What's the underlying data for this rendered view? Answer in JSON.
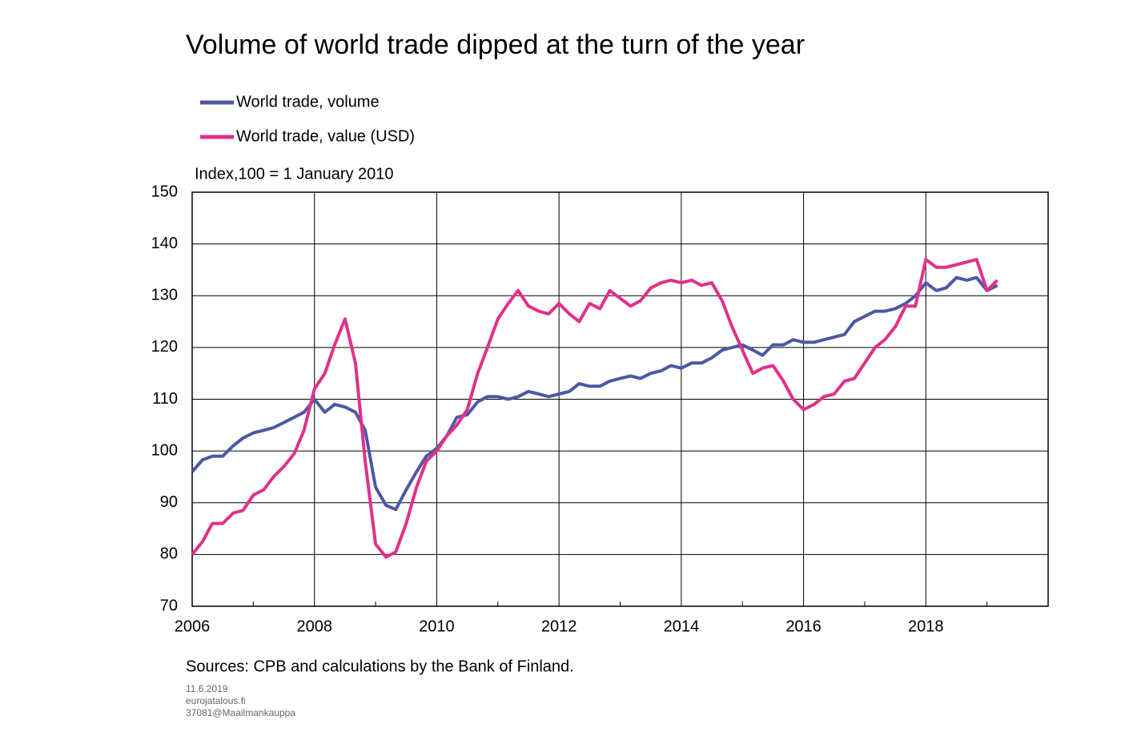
{
  "chart_data": {
    "type": "line",
    "title": "Volume of world trade dipped at the turn of the year",
    "y_label": "Index,100 = 1 January 2010",
    "source": "Sources: CPB and calculations by the Bank of Finland.",
    "footer": [
      "11.6.2019",
      "eurojatalous.fi",
      "37081@Maailmankauppa"
    ],
    "xlim": [
      2006,
      2020
    ],
    "xticks": [
      2006,
      2008,
      2010,
      2012,
      2014,
      2016,
      2018
    ],
    "xminorticks": [
      2007,
      2009,
      2011,
      2013,
      2015,
      2017,
      2019
    ],
    "ylim": [
      70,
      150
    ],
    "yticks": [
      70,
      80,
      90,
      100,
      110,
      120,
      130,
      140,
      150
    ],
    "grid": true,
    "x": [
      2006,
      2006.17,
      2006.33,
      2006.5,
      2006.67,
      2006.83,
      2007,
      2007.17,
      2007.33,
      2007.5,
      2007.67,
      2007.83,
      2008,
      2008.17,
      2008.33,
      2008.5,
      2008.67,
      2008.83,
      2009,
      2009.17,
      2009.33,
      2009.5,
      2009.67,
      2009.83,
      2010,
      2010.17,
      2010.33,
      2010.5,
      2010.67,
      2010.83,
      2011,
      2011.17,
      2011.33,
      2011.5,
      2011.67,
      2011.83,
      2012,
      2012.17,
      2012.33,
      2012.5,
      2012.67,
      2012.83,
      2013,
      2013.17,
      2013.33,
      2013.5,
      2013.67,
      2013.83,
      2014,
      2014.17,
      2014.33,
      2014.5,
      2014.67,
      2014.83,
      2015,
      2015.17,
      2015.33,
      2015.5,
      2015.67,
      2015.83,
      2016,
      2016.17,
      2016.33,
      2016.5,
      2016.67,
      2016.83,
      2017,
      2017.17,
      2017.33,
      2017.5,
      2017.67,
      2017.83,
      2018,
      2018.17,
      2018.33,
      2018.5,
      2018.67,
      2018.83,
      2019,
      2019.17
    ],
    "series": [
      {
        "name": "World trade, volume",
        "color": "#4d58a3",
        "values": [
          96,
          98.3,
          99,
          99,
          101,
          102.5,
          103.5,
          104,
          104.5,
          105.5,
          106.5,
          107.5,
          110,
          107.5,
          109,
          108.5,
          107.5,
          104,
          93,
          89.5,
          88.7,
          92.5,
          96,
          99,
          100.5,
          103,
          106.5,
          107,
          109.5,
          110.5,
          110.5,
          110,
          110.5,
          111.5,
          111,
          110.5,
          111,
          111.5,
          113,
          112.5,
          112.5,
          113.5,
          114,
          114.5,
          114,
          115,
          115.5,
          116.5,
          116,
          117,
          117,
          118,
          119.5,
          120,
          120.5,
          119.5,
          118.5,
          120.5,
          120.5,
          121.5,
          121,
          121,
          121.5,
          122,
          122.5,
          125,
          126,
          127,
          127,
          127.5,
          128.5,
          130,
          132.5,
          131,
          131.5,
          133.5,
          133,
          133.5,
          131,
          132
        ]
      },
      {
        "name": "World trade, value (USD)",
        "color": "#e0318a",
        "values": [
          80,
          82.5,
          86,
          86,
          88,
          88.5,
          91.5,
          92.5,
          95,
          97,
          99.5,
          104,
          112,
          115,
          120.5,
          125.5,
          117,
          98,
          82,
          79.5,
          80.5,
          86,
          93,
          98,
          100,
          103,
          105,
          108,
          115,
          120,
          125.5,
          128.5,
          131,
          128,
          127,
          126.5,
          128.5,
          126.5,
          125,
          128.5,
          127.5,
          131,
          129.5,
          128,
          129,
          131.5,
          132.5,
          133,
          132.5,
          133,
          132,
          132.5,
          129,
          124,
          119.5,
          115,
          116,
          116.5,
          113.5,
          110,
          108,
          109,
          110.5,
          111,
          113.5,
          114,
          117,
          120,
          121.5,
          124,
          128,
          128,
          137,
          135.5,
          135.5,
          136,
          136.5,
          137,
          131,
          133
        ]
      }
    ]
  }
}
